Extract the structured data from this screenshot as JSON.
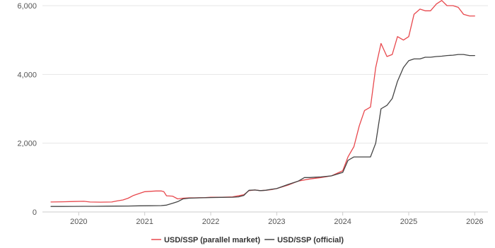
{
  "chart_data": {
    "type": "line",
    "title": "",
    "xlabel": "",
    "ylabel": "",
    "xlim": [
      2019.45,
      2026.2
    ],
    "ylim": [
      0,
      6000
    ],
    "x_ticks": [
      2020,
      2021,
      2022,
      2023,
      2024,
      2025,
      2026
    ],
    "x_tick_labels": [
      "2020",
      "2021",
      "2022",
      "2023",
      "2024",
      "2025",
      "2026"
    ],
    "y_ticks": [
      0,
      2000,
      4000,
      6000
    ],
    "y_tick_labels": [
      "0",
      "2,000",
      "4,000",
      "6,000"
    ],
    "grid": "horizontal",
    "legend_position": "bottom",
    "series": [
      {
        "name": "USD/SSP (parallel market)",
        "color": "#e8484d",
        "x": [
          2019.58,
          2019.75,
          2019.92,
          2020.08,
          2020.17,
          2020.33,
          2020.5,
          2020.58,
          2020.67,
          2020.75,
          2020.83,
          2020.92,
          2021.0,
          2021.08,
          2021.17,
          2021.25,
          2021.29,
          2021.33,
          2021.42,
          2021.5,
          2021.58,
          2021.67,
          2021.75,
          2021.83,
          2021.92,
          2022.0,
          2022.17,
          2022.33,
          2022.5,
          2022.58,
          2022.67,
          2022.75,
          2022.83,
          2022.92,
          2023.0,
          2023.17,
          2023.33,
          2023.5,
          2023.67,
          2023.83,
          2024.0,
          2024.08,
          2024.17,
          2024.25,
          2024.33,
          2024.42,
          2024.5,
          2024.58,
          2024.67,
          2024.75,
          2024.83,
          2024.92,
          2025.0,
          2025.08,
          2025.17,
          2025.25,
          2025.33,
          2025.42,
          2025.5,
          2025.58,
          2025.67,
          2025.75,
          2025.83,
          2025.92,
          2026.0
        ],
        "values": [
          290,
          295,
          305,
          310,
          290,
          285,
          290,
          320,
          350,
          400,
          480,
          540,
          590,
          600,
          610,
          610,
          590,
          470,
          460,
          380,
          400,
          410,
          410,
          415,
          420,
          430,
          430,
          440,
          500,
          620,
          640,
          620,
          630,
          650,
          680,
          780,
          900,
          960,
          1000,
          1050,
          1200,
          1600,
          1900,
          2500,
          2950,
          3050,
          4200,
          4900,
          4520,
          4580,
          5100,
          5000,
          5100,
          5750,
          5900,
          5850,
          5850,
          6050,
          6150,
          6000,
          6000,
          5950,
          5750,
          5700,
          5700
        ]
      },
      {
        "name": "USD/SSP (official)",
        "color": "#444444",
        "x": [
          2019.58,
          2019.75,
          2019.92,
          2020.08,
          2020.25,
          2020.42,
          2020.58,
          2020.75,
          2020.92,
          2021.08,
          2021.25,
          2021.33,
          2021.42,
          2021.5,
          2021.58,
          2021.67,
          2021.83,
          2022.0,
          2022.17,
          2022.33,
          2022.42,
          2022.5,
          2022.58,
          2022.67,
          2022.75,
          2022.83,
          2022.92,
          2023.0,
          2023.17,
          2023.33,
          2023.42,
          2023.5,
          2023.58,
          2023.67,
          2023.83,
          2024.0,
          2024.08,
          2024.17,
          2024.25,
          2024.33,
          2024.42,
          2024.5,
          2024.58,
          2024.67,
          2024.75,
          2024.83,
          2024.92,
          2025.0,
          2025.08,
          2025.17,
          2025.25,
          2025.33,
          2025.42,
          2025.5,
          2025.58,
          2025.67,
          2025.75,
          2025.83,
          2025.92,
          2026.0
        ],
        "values": [
          160,
          160,
          162,
          165,
          165,
          168,
          170,
          172,
          178,
          180,
          185,
          200,
          250,
          300,
          380,
          400,
          410,
          420,
          425,
          430,
          440,
          480,
          630,
          640,
          620,
          630,
          660,
          680,
          800,
          900,
          1000,
          1000,
          1010,
          1020,
          1050,
          1150,
          1500,
          1600,
          1600,
          1600,
          1600,
          2000,
          3000,
          3100,
          3300,
          3800,
          4200,
          4400,
          4450,
          4450,
          4500,
          4500,
          4520,
          4530,
          4550,
          4560,
          4580,
          4580,
          4550,
          4550
        ]
      }
    ]
  }
}
